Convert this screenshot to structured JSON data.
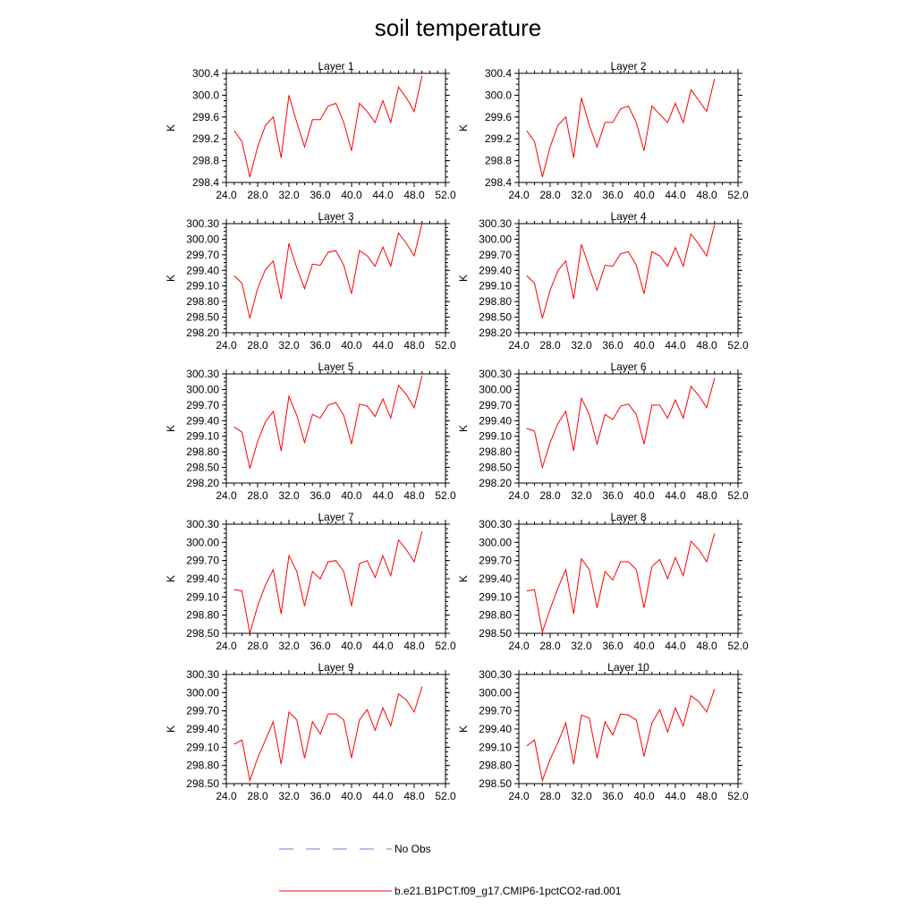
{
  "title": "soil temperature",
  "chart_data": [
    {
      "type": "line",
      "title": "Layer 1",
      "ylabel": "K",
      "xlim": [
        24,
        52
      ],
      "ylim": [
        298.4,
        300.4
      ],
      "xticks": [
        "24.0",
        "28.0",
        "32.0",
        "36.0",
        "40.0",
        "44.0",
        "48.0",
        "52.0"
      ],
      "yticks": [
        "298.4",
        "298.8",
        "299.2",
        "299.6",
        "300.0",
        "300.4"
      ],
      "x": [
        25,
        26,
        27,
        28,
        29,
        30,
        31,
        32,
        33,
        34,
        35,
        36,
        37,
        38,
        39,
        40,
        41,
        42,
        43,
        44,
        45,
        46,
        47,
        48,
        49
      ],
      "series": [
        {
          "name": "b.e21.B1PCT.f09_g17.CMIP6-1pctCO2-rad.001",
          "color": "#ff0000",
          "values": [
            299.35,
            299.15,
            298.5,
            299.05,
            299.45,
            299.6,
            298.85,
            300.0,
            299.5,
            299.05,
            299.55,
            299.55,
            299.8,
            299.85,
            299.5,
            298.98,
            299.85,
            299.7,
            299.5,
            299.9,
            299.5,
            300.15,
            299.95,
            299.7,
            300.35
          ]
        }
      ]
    },
    {
      "type": "line",
      "title": "Layer 2",
      "ylabel": "K",
      "xlim": [
        24,
        52
      ],
      "ylim": [
        298.4,
        300.4
      ],
      "xticks": [
        "24.0",
        "28.0",
        "32.0",
        "36.0",
        "40.0",
        "44.0",
        "48.0",
        "52.0"
      ],
      "yticks": [
        "298.4",
        "298.8",
        "299.2",
        "299.6",
        "300.0",
        "300.4"
      ],
      "x": [
        25,
        26,
        27,
        28,
        29,
        30,
        31,
        32,
        33,
        34,
        35,
        36,
        37,
        38,
        39,
        40,
        41,
        42,
        43,
        44,
        45,
        46,
        47,
        48,
        49
      ],
      "series": [
        {
          "name": "b.e21.B1PCT.f09_g17.CMIP6-1pctCO2-rad.001",
          "color": "#ff0000",
          "values": [
            299.35,
            299.15,
            298.5,
            299.05,
            299.45,
            299.6,
            298.85,
            299.95,
            299.45,
            299.05,
            299.5,
            299.5,
            299.75,
            299.8,
            299.5,
            298.98,
            299.8,
            299.65,
            299.5,
            299.85,
            299.5,
            300.1,
            299.9,
            299.7,
            300.3
          ]
        }
      ]
    },
    {
      "type": "line",
      "title": "Layer 3",
      "ylabel": "K",
      "xlim": [
        24,
        52
      ],
      "ylim": [
        298.2,
        300.3
      ],
      "xticks": [
        "24.0",
        "28.0",
        "32.0",
        "36.0",
        "40.0",
        "44.0",
        "48.0",
        "52.0"
      ],
      "yticks": [
        "298.20",
        "298.50",
        "298.80",
        "299.10",
        "299.40",
        "299.70",
        "300.00",
        "300.30"
      ],
      "x": [
        25,
        26,
        27,
        28,
        29,
        30,
        31,
        32,
        33,
        34,
        35,
        36,
        37,
        38,
        39,
        40,
        41,
        42,
        43,
        44,
        45,
        46,
        47,
        48,
        49
      ],
      "series": [
        {
          "name": "b.e21.B1PCT.f09_g17.CMIP6-1pctCO2-rad.001",
          "color": "#ff0000",
          "values": [
            299.3,
            299.15,
            298.48,
            299.05,
            299.42,
            299.58,
            298.85,
            299.92,
            299.45,
            299.05,
            299.52,
            299.5,
            299.75,
            299.78,
            299.5,
            298.95,
            299.78,
            299.68,
            299.48,
            299.85,
            299.48,
            300.12,
            299.92,
            299.68,
            300.3
          ]
        }
      ]
    },
    {
      "type": "line",
      "title": "Layer 4",
      "ylabel": "K",
      "xlim": [
        24,
        52
      ],
      "ylim": [
        298.2,
        300.3
      ],
      "xticks": [
        "24.0",
        "28.0",
        "32.0",
        "36.0",
        "40.0",
        "44.0",
        "48.0",
        "52.0"
      ],
      "yticks": [
        "298.20",
        "298.50",
        "298.80",
        "299.10",
        "299.40",
        "299.70",
        "300.00",
        "300.30"
      ],
      "x": [
        25,
        26,
        27,
        28,
        29,
        30,
        31,
        32,
        33,
        34,
        35,
        36,
        37,
        38,
        39,
        40,
        41,
        42,
        43,
        44,
        45,
        46,
        47,
        48,
        49
      ],
      "series": [
        {
          "name": "b.e21.B1PCT.f09_g17.CMIP6-1pctCO2-rad.001",
          "color": "#ff0000",
          "values": [
            299.3,
            299.15,
            298.48,
            299.02,
            299.4,
            299.58,
            298.85,
            299.9,
            299.45,
            299.02,
            299.5,
            299.48,
            299.72,
            299.76,
            299.5,
            298.95,
            299.76,
            299.68,
            299.48,
            299.84,
            299.48,
            300.1,
            299.9,
            299.68,
            300.28
          ]
        }
      ]
    },
    {
      "type": "line",
      "title": "Layer 5",
      "ylabel": "K",
      "xlim": [
        24,
        52
      ],
      "ylim": [
        298.2,
        300.3
      ],
      "xticks": [
        "24.0",
        "28.0",
        "32.0",
        "36.0",
        "40.0",
        "44.0",
        "48.0",
        "52.0"
      ],
      "yticks": [
        "298.20",
        "298.50",
        "298.80",
        "299.10",
        "299.40",
        "299.70",
        "300.00",
        "300.30"
      ],
      "x": [
        25,
        26,
        27,
        28,
        29,
        30,
        31,
        32,
        33,
        34,
        35,
        36,
        37,
        38,
        39,
        40,
        41,
        42,
        43,
        44,
        45,
        46,
        47,
        48,
        49
      ],
      "series": [
        {
          "name": "b.e21.B1PCT.f09_g17.CMIP6-1pctCO2-rad.001",
          "color": "#ff0000",
          "values": [
            299.28,
            299.18,
            298.48,
            299.0,
            299.38,
            299.58,
            298.82,
            299.87,
            299.5,
            298.98,
            299.52,
            299.45,
            299.7,
            299.75,
            299.5,
            298.95,
            299.72,
            299.68,
            299.48,
            299.82,
            299.45,
            300.08,
            299.9,
            299.65,
            300.26
          ]
        }
      ]
    },
    {
      "type": "line",
      "title": "Layer 6",
      "ylabel": "K",
      "xlim": [
        24,
        52
      ],
      "ylim": [
        298.2,
        300.3
      ],
      "xticks": [
        "24.0",
        "28.0",
        "32.0",
        "36.0",
        "40.0",
        "44.0",
        "48.0",
        "52.0"
      ],
      "yticks": [
        "298.20",
        "298.50",
        "298.80",
        "299.10",
        "299.40",
        "299.70",
        "300.00",
        "300.30"
      ],
      "x": [
        25,
        26,
        27,
        28,
        29,
        30,
        31,
        32,
        33,
        34,
        35,
        36,
        37,
        38,
        39,
        40,
        41,
        42,
        43,
        44,
        45,
        46,
        47,
        48,
        49
      ],
      "series": [
        {
          "name": "b.e21.B1PCT.f09_g17.CMIP6-1pctCO2-rad.001",
          "color": "#ff0000",
          "values": [
            299.25,
            299.2,
            298.5,
            298.98,
            299.35,
            299.58,
            298.82,
            299.83,
            299.52,
            298.95,
            299.52,
            299.42,
            299.68,
            299.72,
            299.52,
            298.95,
            299.7,
            299.7,
            299.45,
            299.8,
            299.45,
            300.06,
            299.88,
            299.65,
            300.22
          ]
        }
      ]
    },
    {
      "type": "line",
      "title": "Layer 7",
      "ylabel": "K",
      "xlim": [
        24,
        52
      ],
      "ylim": [
        298.5,
        300.3
      ],
      "xticks": [
        "24.0",
        "28.0",
        "32.0",
        "36.0",
        "40.0",
        "44.0",
        "48.0",
        "52.0"
      ],
      "yticks": [
        "298.50",
        "298.80",
        "299.10",
        "299.40",
        "299.70",
        "300.00",
        "300.30"
      ],
      "x": [
        25,
        26,
        27,
        28,
        29,
        30,
        31,
        32,
        33,
        34,
        35,
        36,
        37,
        38,
        39,
        40,
        41,
        42,
        43,
        44,
        45,
        46,
        47,
        48,
        49
      ],
      "series": [
        {
          "name": "b.e21.B1PCT.f09_g17.CMIP6-1pctCO2-rad.001",
          "color": "#ff0000",
          "values": [
            299.22,
            299.2,
            298.5,
            298.95,
            299.3,
            299.55,
            298.82,
            299.78,
            299.52,
            298.95,
            299.52,
            299.4,
            299.68,
            299.7,
            299.52,
            298.95,
            299.65,
            299.7,
            299.42,
            299.78,
            299.45,
            300.04,
            299.88,
            299.68,
            300.18
          ]
        }
      ]
    },
    {
      "type": "line",
      "title": "Layer 8",
      "ylabel": "K",
      "xlim": [
        24,
        52
      ],
      "ylim": [
        298.5,
        300.3
      ],
      "xticks": [
        "24.0",
        "28.0",
        "32.0",
        "36.0",
        "40.0",
        "44.0",
        "48.0",
        "52.0"
      ],
      "yticks": [
        "298.50",
        "298.80",
        "299.10",
        "299.40",
        "299.70",
        "300.00",
        "300.30"
      ],
      "x": [
        25,
        26,
        27,
        28,
        29,
        30,
        31,
        32,
        33,
        34,
        35,
        36,
        37,
        38,
        39,
        40,
        41,
        42,
        43,
        44,
        45,
        46,
        47,
        48,
        49
      ],
      "series": [
        {
          "name": "b.e21.B1PCT.f09_g17.CMIP6-1pctCO2-rad.001",
          "color": "#ff0000",
          "values": [
            299.2,
            299.22,
            298.52,
            298.9,
            299.25,
            299.55,
            298.82,
            299.73,
            299.55,
            298.92,
            299.52,
            299.38,
            299.68,
            299.68,
            299.55,
            298.92,
            299.6,
            299.72,
            299.4,
            299.75,
            299.45,
            300.02,
            299.88,
            299.68,
            300.15
          ]
        }
      ]
    },
    {
      "type": "line",
      "title": "Layer 9",
      "ylabel": "K",
      "xlim": [
        24,
        52
      ],
      "ylim": [
        298.5,
        300.3
      ],
      "xticks": [
        "24.0",
        "28.0",
        "32.0",
        "36.0",
        "40.0",
        "44.0",
        "48.0",
        "52.0"
      ],
      "yticks": [
        "298.50",
        "298.80",
        "299.10",
        "299.40",
        "299.70",
        "300.00",
        "300.30"
      ],
      "x": [
        25,
        26,
        27,
        28,
        29,
        30,
        31,
        32,
        33,
        34,
        35,
        36,
        37,
        38,
        39,
        40,
        41,
        42,
        43,
        44,
        45,
        46,
        47,
        48,
        49
      ],
      "series": [
        {
          "name": "b.e21.B1PCT.f09_g17.CMIP6-1pctCO2-rad.001",
          "color": "#ff0000",
          "values": [
            299.15,
            299.22,
            298.55,
            298.92,
            299.22,
            299.52,
            298.82,
            299.68,
            299.55,
            298.92,
            299.52,
            299.32,
            299.65,
            299.65,
            299.55,
            298.92,
            299.55,
            299.72,
            299.38,
            299.75,
            299.45,
            299.98,
            299.88,
            299.68,
            300.1
          ]
        }
      ]
    },
    {
      "type": "line",
      "title": "Layer 10",
      "ylabel": "K",
      "xlim": [
        24,
        52
      ],
      "ylim": [
        298.5,
        300.3
      ],
      "xticks": [
        "24.0",
        "28.0",
        "32.0",
        "36.0",
        "40.0",
        "44.0",
        "48.0",
        "52.0"
      ],
      "yticks": [
        "298.50",
        "298.80",
        "299.10",
        "299.40",
        "299.70",
        "300.00",
        "300.30"
      ],
      "x": [
        25,
        26,
        27,
        28,
        29,
        30,
        31,
        32,
        33,
        34,
        35,
        36,
        37,
        38,
        39,
        40,
        41,
        42,
        43,
        44,
        45,
        46,
        47,
        48,
        49
      ],
      "series": [
        {
          "name": "b.e21.B1PCT.f09_g17.CMIP6-1pctCO2-rad.001",
          "color": "#ff0000",
          "values": [
            299.12,
            299.22,
            298.55,
            298.9,
            299.18,
            299.5,
            298.82,
            299.63,
            299.58,
            298.92,
            299.52,
            299.3,
            299.65,
            299.63,
            299.55,
            298.95,
            299.5,
            299.72,
            299.35,
            299.75,
            299.45,
            299.95,
            299.85,
            299.68,
            300.06
          ]
        }
      ]
    }
  ],
  "legend": [
    {
      "label": "No Obs",
      "color": "#6a7fd9",
      "style": "dashed"
    },
    {
      "label": "b.e21.B1PCT.f09_g17.CMIP6-1pctCO2-rad.001",
      "color": "#ff0000",
      "style": "solid"
    }
  ]
}
